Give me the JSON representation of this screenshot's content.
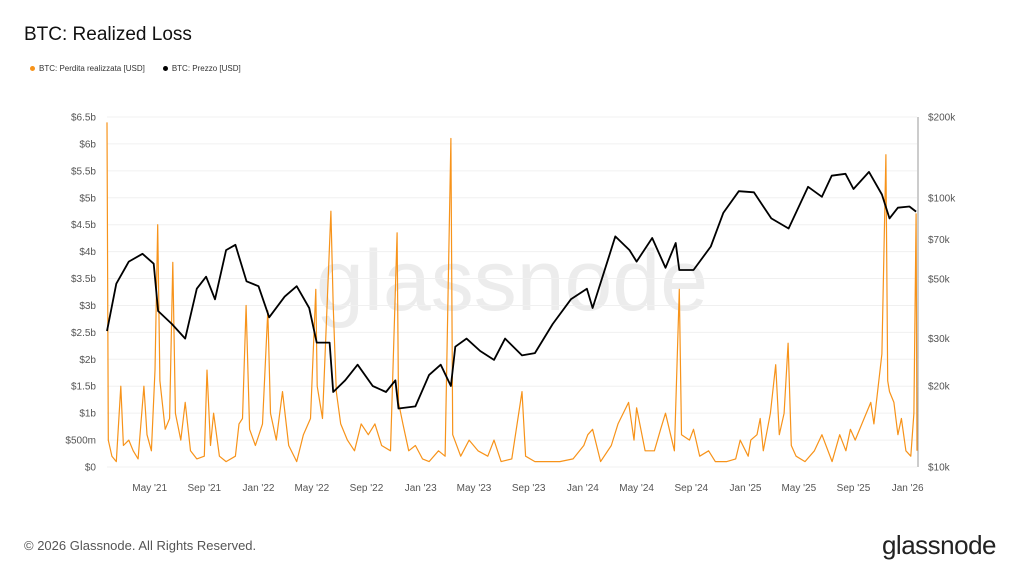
{
  "header": {
    "title": "BTC: Realized Loss"
  },
  "legend": [
    {
      "label": "BTC: Perdita realizzata [USD]",
      "color": "#f7931a"
    },
    {
      "label": "BTC: Prezzo [USD]",
      "color": "#000000"
    }
  ],
  "footer": {
    "copyright": "© 2026 Glassnode. All Rights Reserved.",
    "logo": "glassnode",
    "watermark": "glassnode"
  },
  "chart_data": {
    "type": "line",
    "title": "BTC: Realized Loss",
    "x_ticks": [
      "May '21",
      "Sep '21",
      "Jan '22",
      "May '22",
      "Sep '22",
      "Jan '23",
      "May '23",
      "Sep '23",
      "Jan '24",
      "May '24",
      "Sep '24",
      "Jan '25",
      "May '25",
      "Sep '25",
      "Jan '26"
    ],
    "x_range": [
      "2021-01-25",
      "2026-01-22"
    ],
    "y_left": {
      "ticks": [
        "$0",
        "$500m",
        "$1b",
        "$1.5b",
        "$2b",
        "$2.5b",
        "$3b",
        "$3.5b",
        "$4b",
        "$4.5b",
        "$5b",
        "$5.5b",
        "$6b",
        "$6.5b"
      ],
      "range": [
        0,
        6.5
      ],
      "unit": "USD billions",
      "scale": "linear"
    },
    "y_right": {
      "ticks": [
        "$10k",
        "$20k",
        "$30k",
        "$50k",
        "$70k",
        "$100k",
        "$200k"
      ],
      "tick_values": [
        10000,
        20000,
        30000,
        50000,
        70000,
        100000,
        200000
      ],
      "range": [
        10000,
        200000
      ],
      "scale": "log"
    },
    "grid": true,
    "legend_position": "top-left",
    "series": [
      {
        "name": "BTC: Perdita realizzata [USD]",
        "axis": "left",
        "color": "#f7931a",
        "points": [
          [
            "2021-01-25",
            6.4
          ],
          [
            "2021-01-28",
            0.5
          ],
          [
            "2021-02-05",
            0.2
          ],
          [
            "2021-02-15",
            0.1
          ],
          [
            "2021-02-25",
            1.5
          ],
          [
            "2021-03-03",
            0.4
          ],
          [
            "2021-03-15",
            0.5
          ],
          [
            "2021-03-25",
            0.3
          ],
          [
            "2021-04-05",
            0.15
          ],
          [
            "2021-04-18",
            1.5
          ],
          [
            "2021-04-25",
            0.6
          ],
          [
            "2021-05-05",
            0.3
          ],
          [
            "2021-05-13",
            1.8
          ],
          [
            "2021-05-19",
            4.5
          ],
          [
            "2021-05-24",
            1.6
          ],
          [
            "2021-06-05",
            0.7
          ],
          [
            "2021-06-15",
            0.9
          ],
          [
            "2021-06-22",
            3.8
          ],
          [
            "2021-06-28",
            1.0
          ],
          [
            "2021-07-10",
            0.5
          ],
          [
            "2021-07-20",
            1.2
          ],
          [
            "2021-08-01",
            0.3
          ],
          [
            "2021-08-15",
            0.15
          ],
          [
            "2021-09-01",
            0.2
          ],
          [
            "2021-09-07",
            1.8
          ],
          [
            "2021-09-15",
            0.4
          ],
          [
            "2021-09-22",
            1.0
          ],
          [
            "2021-10-05",
            0.2
          ],
          [
            "2021-10-20",
            0.1
          ],
          [
            "2021-11-10",
            0.2
          ],
          [
            "2021-11-18",
            0.8
          ],
          [
            "2021-11-26",
            0.9
          ],
          [
            "2021-12-04",
            3.0
          ],
          [
            "2021-12-12",
            0.7
          ],
          [
            "2021-12-25",
            0.4
          ],
          [
            "2022-01-10",
            0.8
          ],
          [
            "2022-01-22",
            2.9
          ],
          [
            "2022-01-28",
            1.0
          ],
          [
            "2022-02-10",
            0.5
          ],
          [
            "2022-02-24",
            1.4
          ],
          [
            "2022-03-10",
            0.4
          ],
          [
            "2022-03-28",
            0.1
          ],
          [
            "2022-04-12",
            0.6
          ],
          [
            "2022-04-28",
            0.9
          ],
          [
            "2022-05-10",
            3.3
          ],
          [
            "2022-05-13",
            1.5
          ],
          [
            "2022-05-25",
            0.9
          ],
          [
            "2022-06-13",
            4.75
          ],
          [
            "2022-06-18",
            3.0
          ],
          [
            "2022-06-25",
            1.4
          ],
          [
            "2022-07-05",
            0.8
          ],
          [
            "2022-07-20",
            0.5
          ],
          [
            "2022-08-05",
            0.3
          ],
          [
            "2022-08-20",
            0.8
          ],
          [
            "2022-09-05",
            0.6
          ],
          [
            "2022-09-20",
            0.8
          ],
          [
            "2022-10-05",
            0.4
          ],
          [
            "2022-10-25",
            0.3
          ],
          [
            "2022-11-09",
            4.35
          ],
          [
            "2022-11-12",
            1.2
          ],
          [
            "2022-11-22",
            0.8
          ],
          [
            "2022-12-05",
            0.3
          ],
          [
            "2022-12-20",
            0.4
          ],
          [
            "2023-01-05",
            0.15
          ],
          [
            "2023-01-20",
            0.1
          ],
          [
            "2023-02-10",
            0.3
          ],
          [
            "2023-02-25",
            0.2
          ],
          [
            "2023-03-10",
            6.1
          ],
          [
            "2023-03-14",
            0.6
          ],
          [
            "2023-04-01",
            0.2
          ],
          [
            "2023-04-20",
            0.5
          ],
          [
            "2023-05-10",
            0.3
          ],
          [
            "2023-06-01",
            0.2
          ],
          [
            "2023-06-15",
            0.5
          ],
          [
            "2023-07-01",
            0.1
          ],
          [
            "2023-07-25",
            0.15
          ],
          [
            "2023-08-17",
            1.4
          ],
          [
            "2023-08-25",
            0.2
          ],
          [
            "2023-09-15",
            0.1
          ],
          [
            "2023-10-10",
            0.1
          ],
          [
            "2023-11-10",
            0.1
          ],
          [
            "2023-12-10",
            0.15
          ],
          [
            "2024-01-03",
            0.4
          ],
          [
            "2024-01-12",
            0.6
          ],
          [
            "2024-01-23",
            0.7
          ],
          [
            "2024-02-10",
            0.1
          ],
          [
            "2024-03-05",
            0.4
          ],
          [
            "2024-03-20",
            0.8
          ],
          [
            "2024-04-13",
            1.2
          ],
          [
            "2024-04-25",
            0.5
          ],
          [
            "2024-05-01",
            1.1
          ],
          [
            "2024-05-20",
            0.3
          ],
          [
            "2024-06-10",
            0.3
          ],
          [
            "2024-06-24",
            0.7
          ],
          [
            "2024-07-05",
            1.0
          ],
          [
            "2024-07-25",
            0.3
          ],
          [
            "2024-08-05",
            3.3
          ],
          [
            "2024-08-10",
            0.6
          ],
          [
            "2024-08-28",
            0.5
          ],
          [
            "2024-09-06",
            0.7
          ],
          [
            "2024-09-20",
            0.2
          ],
          [
            "2024-10-10",
            0.3
          ],
          [
            "2024-10-25",
            0.1
          ],
          [
            "2024-11-20",
            0.1
          ],
          [
            "2024-12-10",
            0.15
          ],
          [
            "2024-12-20",
            0.5
          ],
          [
            "2025-01-07",
            0.2
          ],
          [
            "2025-01-13",
            0.5
          ],
          [
            "2025-01-27",
            0.6
          ],
          [
            "2025-02-03",
            0.9
          ],
          [
            "2025-02-10",
            0.3
          ],
          [
            "2025-02-26",
            1.0
          ],
          [
            "2025-03-10",
            1.9
          ],
          [
            "2025-03-18",
            0.6
          ],
          [
            "2025-03-29",
            1.0
          ],
          [
            "2025-04-07",
            2.3
          ],
          [
            "2025-04-14",
            0.4
          ],
          [
            "2025-04-25",
            0.2
          ],
          [
            "2025-05-15",
            0.1
          ],
          [
            "2025-06-05",
            0.3
          ],
          [
            "2025-06-22",
            0.6
          ],
          [
            "2025-07-15",
            0.1
          ],
          [
            "2025-08-01",
            0.6
          ],
          [
            "2025-08-15",
            0.3
          ],
          [
            "2025-08-25",
            0.7
          ],
          [
            "2025-09-05",
            0.5
          ],
          [
            "2025-09-25",
            0.9
          ],
          [
            "2025-10-10",
            1.2
          ],
          [
            "2025-10-17",
            0.8
          ],
          [
            "2025-11-04",
            2.1
          ],
          [
            "2025-11-13",
            5.8
          ],
          [
            "2025-11-17",
            1.6
          ],
          [
            "2025-11-21",
            1.4
          ],
          [
            "2025-12-01",
            1.2
          ],
          [
            "2025-12-10",
            0.6
          ],
          [
            "2025-12-18",
            0.9
          ],
          [
            "2025-12-28",
            0.3
          ],
          [
            "2026-01-08",
            0.2
          ],
          [
            "2026-01-15",
            1.0
          ],
          [
            "2026-01-20",
            4.7
          ],
          [
            "2026-01-22",
            0.3
          ]
        ]
      },
      {
        "name": "BTC: Prezzo [USD]",
        "axis": "right",
        "color": "#000000",
        "points": [
          [
            "2021-01-25",
            32000
          ],
          [
            "2021-02-15",
            48000
          ],
          [
            "2021-03-15",
            58000
          ],
          [
            "2021-04-15",
            62000
          ],
          [
            "2021-05-10",
            57000
          ],
          [
            "2021-05-20",
            38000
          ],
          [
            "2021-06-20",
            34000
          ],
          [
            "2021-07-20",
            30000
          ],
          [
            "2021-08-15",
            46000
          ],
          [
            "2021-09-05",
            51000
          ],
          [
            "2021-09-25",
            42000
          ],
          [
            "2021-10-20",
            64000
          ],
          [
            "2021-11-10",
            67000
          ],
          [
            "2021-12-05",
            49000
          ],
          [
            "2022-01-01",
            47000
          ],
          [
            "2022-01-25",
            36000
          ],
          [
            "2022-03-01",
            43000
          ],
          [
            "2022-03-28",
            47000
          ],
          [
            "2022-04-25",
            39000
          ],
          [
            "2022-05-12",
            29000
          ],
          [
            "2022-06-10",
            29000
          ],
          [
            "2022-06-18",
            19000
          ],
          [
            "2022-07-15",
            21000
          ],
          [
            "2022-08-12",
            24000
          ],
          [
            "2022-09-15",
            20000
          ],
          [
            "2022-10-15",
            19000
          ],
          [
            "2022-11-05",
            21000
          ],
          [
            "2022-11-12",
            16500
          ],
          [
            "2022-12-20",
            16800
          ],
          [
            "2023-01-20",
            22000
          ],
          [
            "2023-02-15",
            24000
          ],
          [
            "2023-03-10",
            20000
          ],
          [
            "2023-03-20",
            28000
          ],
          [
            "2023-04-14",
            30000
          ],
          [
            "2023-05-15",
            27000
          ],
          [
            "2023-06-15",
            25000
          ],
          [
            "2023-07-10",
            30000
          ],
          [
            "2023-08-17",
            26000
          ],
          [
            "2023-09-15",
            26500
          ],
          [
            "2023-10-25",
            34000
          ],
          [
            "2023-12-05",
            42000
          ],
          [
            "2024-01-10",
            46000
          ],
          [
            "2024-01-23",
            39000
          ],
          [
            "2024-02-28",
            60000
          ],
          [
            "2024-03-14",
            72000
          ],
          [
            "2024-04-15",
            64000
          ],
          [
            "2024-05-01",
            58000
          ],
          [
            "2024-06-05",
            71000
          ],
          [
            "2024-07-05",
            55000
          ],
          [
            "2024-07-28",
            68000
          ],
          [
            "2024-08-05",
            54000
          ],
          [
            "2024-09-06",
            54000
          ],
          [
            "2024-10-15",
            66000
          ],
          [
            "2024-11-12",
            88000
          ],
          [
            "2024-12-17",
            106000
          ],
          [
            "2025-01-20",
            105000
          ],
          [
            "2025-02-28",
            84000
          ],
          [
            "2025-04-08",
            77000
          ],
          [
            "2025-05-22",
            110000
          ],
          [
            "2025-06-22",
            101000
          ],
          [
            "2025-07-14",
            121000
          ],
          [
            "2025-08-14",
            123000
          ],
          [
            "2025-09-01",
            108000
          ],
          [
            "2025-10-06",
            125000
          ],
          [
            "2025-11-04",
            103000
          ],
          [
            "2025-11-21",
            84000
          ],
          [
            "2025-12-10",
            92000
          ],
          [
            "2026-01-05",
            93000
          ],
          [
            "2026-01-20",
            89000
          ]
        ]
      }
    ]
  }
}
